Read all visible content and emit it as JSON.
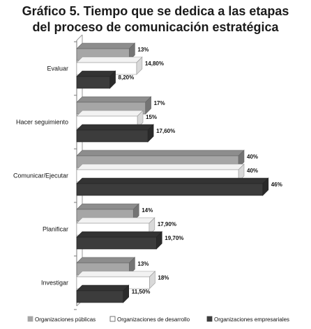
{
  "chart_data": {
    "type": "bar",
    "orientation": "horizontal",
    "title_lines": [
      "Gráfico 5. Tiempo que se dedica a las etapas",
      "del proceso de comunicación estratégica"
    ],
    "categories": [
      "Evaluar",
      "Hacer seguimiento",
      "Comunicar/Ejecutar",
      "Planificar",
      "Investigar"
    ],
    "series": [
      {
        "name": "Organizaciones públicas",
        "color": "#a6a6a6",
        "values": [
          13,
          17,
          40,
          14,
          13
        ],
        "labels": [
          "13%",
          "17%",
          "40%",
          "14%",
          "13%"
        ]
      },
      {
        "name": "Organizaciones de desarrollo",
        "color": "#ffffff",
        "values": [
          14.8,
          15,
          40,
          17.9,
          18
        ],
        "labels": [
          "14,80%",
          "15%",
          "40%",
          "17,90%",
          "18%"
        ]
      },
      {
        "name": "Organizaciones empresariales",
        "color": "#3c3c3c",
        "values": [
          8.2,
          17.6,
          46,
          19.7,
          11.5
        ],
        "labels": [
          "8,20%",
          "17,60%",
          "46%",
          "19,70%",
          "11,50%"
        ]
      }
    ],
    "xlim": [
      0,
      50
    ],
    "legend_position": "bottom",
    "style": "3d"
  }
}
